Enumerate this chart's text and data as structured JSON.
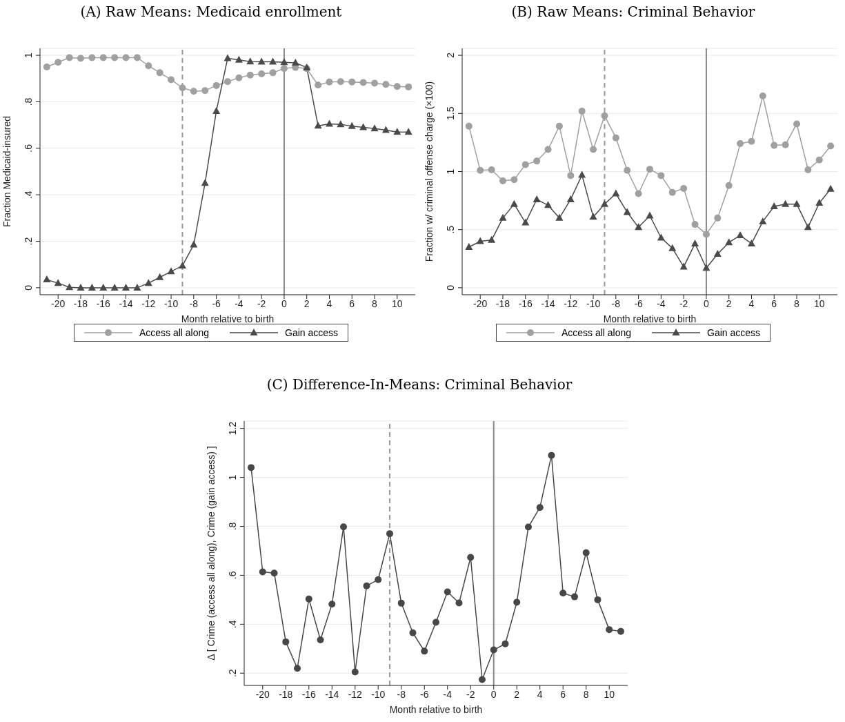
{
  "chart_data": [
    {
      "type": "line",
      "title": "(A) Raw Means: Medicaid enrollment",
      "xlabel": "Month relative to birth",
      "ylabel": "Fraction Medicaid-insured",
      "x": [
        -21,
        -20,
        -19,
        -18,
        -17,
        -16,
        -15,
        -14,
        -13,
        -12,
        -11,
        -10,
        -9,
        -8,
        -7,
        -6,
        -5,
        -4,
        -3,
        -2,
        -1,
        0,
        1,
        2,
        3,
        4,
        5,
        6,
        7,
        8,
        9,
        10,
        11
      ],
      "series": [
        {
          "name": "Access all along",
          "color": "#a0a0a0",
          "marker": "circle",
          "values": [
            0.95,
            0.97,
            0.99,
            0.987,
            0.99,
            0.99,
            0.99,
            0.99,
            0.99,
            0.955,
            0.925,
            0.895,
            0.86,
            0.845,
            0.848,
            0.87,
            0.887,
            0.903,
            0.915,
            0.92,
            0.925,
            0.943,
            0.948,
            0.943,
            0.872,
            0.885,
            0.887,
            0.885,
            0.883,
            0.88,
            0.875,
            0.866,
            0.864
          ]
        },
        {
          "name": "Gain access",
          "color": "#4a4a4a",
          "marker": "triangle",
          "values": [
            0.035,
            0.02,
            0.002,
            0,
            0,
            0,
            0,
            0,
            0,
            0.02,
            0.045,
            0.07,
            0.095,
            0.185,
            0.45,
            0.76,
            0.987,
            0.98,
            0.973,
            0.972,
            0.972,
            0.97,
            0.968,
            0.947,
            0.697,
            0.705,
            0.703,
            0.695,
            0.69,
            0.685,
            0.678,
            0.67,
            0.67
          ]
        }
      ],
      "xlim": [
        -21.6,
        11.6
      ],
      "xticks": [
        -20,
        -18,
        -16,
        -14,
        -12,
        -10,
        -8,
        -6,
        -4,
        -2,
        0,
        2,
        4,
        6,
        8,
        10
      ],
      "ylim": [
        -0.03,
        1.03
      ],
      "yticks": [
        {
          "value": 0,
          "label": "0"
        },
        {
          "value": 0.2,
          "label": ".2"
        },
        {
          "value": 0.4,
          "label": ".4"
        },
        {
          "value": 0.6,
          "label": ".6"
        },
        {
          "value": 0.8,
          "label": ".8"
        },
        {
          "value": 1,
          "label": "1"
        }
      ],
      "ref_lines": [
        {
          "axis": "x",
          "value": -9,
          "color": "#999999",
          "line_style": "dashed"
        },
        {
          "axis": "x",
          "value": 0,
          "color": "#888888",
          "line_style": "solid"
        }
      ],
      "grid": "y",
      "legend": "bottom"
    },
    {
      "type": "line",
      "title": "(B) Raw Means: Criminal Behavior",
      "xlabel": "Month relative to birth",
      "ylabel": "Fraction w/ criminal offense charge (×100)",
      "x": [
        -21,
        -20,
        -19,
        -18,
        -17,
        -16,
        -15,
        -14,
        -13,
        -12,
        -11,
        -10,
        -9,
        -8,
        -7,
        -6,
        -5,
        -4,
        -3,
        -2,
        -1,
        0,
        1,
        2,
        3,
        4,
        5,
        6,
        7,
        8,
        9,
        10,
        11
      ],
      "series": [
        {
          "name": "Access all along",
          "color": "#a0a0a0",
          "marker": "circle",
          "values": [
            1.39,
            1.01,
            1.015,
            0.92,
            0.93,
            1.06,
            1.09,
            1.19,
            1.39,
            0.965,
            1.52,
            1.19,
            1.48,
            1.29,
            1.01,
            0.81,
            1.02,
            0.965,
            0.82,
            0.855,
            0.545,
            0.46,
            0.6,
            0.88,
            1.24,
            1.26,
            1.65,
            1.225,
            1.23,
            1.41,
            1.015,
            1.1,
            1.22
          ]
        },
        {
          "name": "Gain access",
          "color": "#4a4a4a",
          "marker": "triangle",
          "values": [
            0.35,
            0.4,
            0.41,
            0.6,
            0.72,
            0.56,
            0.76,
            0.71,
            0.6,
            0.76,
            0.97,
            0.61,
            0.72,
            0.81,
            0.65,
            0.52,
            0.62,
            0.43,
            0.34,
            0.18,
            0.38,
            0.17,
            0.29,
            0.39,
            0.45,
            0.38,
            0.57,
            0.7,
            0.72,
            0.72,
            0.52,
            0.73,
            0.85
          ]
        }
      ],
      "xlim": [
        -21.6,
        11.6
      ],
      "xticks": [
        -20,
        -18,
        -16,
        -14,
        -12,
        -10,
        -8,
        -6,
        -4,
        -2,
        0,
        2,
        4,
        6,
        8,
        10
      ],
      "ylim": [
        -0.06,
        2.06
      ],
      "yticks": [
        {
          "value": 0,
          "label": "0"
        },
        {
          "value": 0.5,
          "label": ".5"
        },
        {
          "value": 1,
          "label": "1"
        },
        {
          "value": 1.5,
          "label": "1.5"
        },
        {
          "value": 2,
          "label": "2"
        }
      ],
      "ref_lines": [
        {
          "axis": "x",
          "value": -9,
          "color": "#999999",
          "line_style": "dashed"
        },
        {
          "axis": "x",
          "value": 0,
          "color": "#888888",
          "line_style": "solid"
        }
      ],
      "grid": "y",
      "legend": "bottom"
    },
    {
      "type": "line",
      "title": "(C) Difference-In-Means: Criminal Behavior",
      "xlabel": "Month relative to birth",
      "ylabel": "Δ [ Crime (access all along), Crime (gain access) ]",
      "x": [
        -21,
        -20,
        -19,
        -18,
        -17,
        -16,
        -15,
        -14,
        -13,
        -12,
        -11,
        -10,
        -9,
        -8,
        -7,
        -6,
        -5,
        -4,
        -3,
        -2,
        -1,
        0,
        1,
        2,
        3,
        4,
        5,
        6,
        7,
        8,
        9,
        10,
        11
      ],
      "series": [
        {
          "color": "#474747",
          "marker": "circle",
          "values": [
            1.04,
            0.614,
            0.609,
            0.328,
            0.22,
            0.503,
            0.336,
            0.482,
            0.798,
            0.205,
            0.557,
            0.582,
            0.77,
            0.486,
            0.365,
            0.29,
            0.408,
            0.532,
            0.487,
            0.673,
            0.174,
            0.295,
            0.32,
            0.49,
            0.797,
            0.877,
            1.09,
            0.527,
            0.512,
            0.692,
            0.5,
            0.378,
            0.371
          ]
        }
      ],
      "xlim": [
        -21.6,
        11.6
      ],
      "xticks": [
        -20,
        -18,
        -16,
        -14,
        -12,
        -10,
        -8,
        -6,
        -4,
        -2,
        0,
        2,
        4,
        6,
        8,
        10
      ],
      "ylim": [
        0.15,
        1.23
      ],
      "yticks": [
        {
          "value": 0.2,
          "label": ".2"
        },
        {
          "value": 0.4,
          "label": ".4"
        },
        {
          "value": 0.6,
          "label": ".6"
        },
        {
          "value": 0.8,
          "label": ".8"
        },
        {
          "value": 1,
          "label": "1"
        },
        {
          "value": 1.2,
          "label": "1.2"
        }
      ],
      "ref_lines": [
        {
          "axis": "x",
          "value": -9,
          "color": "#999999",
          "line_style": "dashed"
        },
        {
          "axis": "x",
          "value": 0,
          "color": "#888888",
          "line_style": "solid"
        }
      ],
      "grid": "y"
    }
  ]
}
